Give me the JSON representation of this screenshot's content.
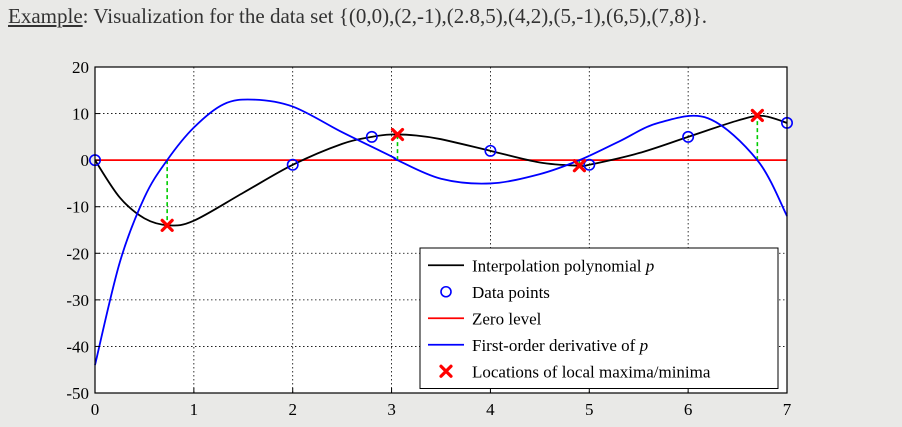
{
  "heading": {
    "lead": "Example",
    "rest": ": Visualization for the data set {(0,0),(2,-1),(2.8,5),(4,2),(5,-1),(6,5),(7,8)}."
  },
  "chart_data": {
    "type": "line",
    "title": "Example: Visualization for the data set {(0,0),(2,-1),(2.8,5),(4,2),(5,-1),(6,5),(7,8)}.",
    "xlabel": "",
    "ylabel": "",
    "xlim": [
      0,
      7
    ],
    "ylim": [
      -50,
      20
    ],
    "x_ticks": [
      "0",
      "1",
      "2",
      "3",
      "4",
      "5",
      "6",
      "7"
    ],
    "y_ticks": [
      "20",
      "10",
      "0",
      "-10",
      "-20",
      "-30",
      "-40",
      "-50"
    ],
    "x_tick_values": [
      0,
      1,
      2,
      3,
      4,
      5,
      6,
      7
    ],
    "y_tick_values": [
      20,
      10,
      0,
      -10,
      -20,
      -30,
      -40,
      -50
    ],
    "grid": true,
    "legend_position": "bottom-right",
    "series": [
      {
        "name": "Interpolation polynomial p",
        "style": "line",
        "color": "#000000",
        "x": [
          0,
          0.25,
          0.5,
          0.75,
          1,
          1.5,
          2,
          2.5,
          2.8,
          3,
          3.25,
          3.5,
          4,
          4.5,
          4.9,
          5,
          5.5,
          6,
          6.5,
          6.75,
          7
        ],
        "y": [
          0,
          -8,
          -12.5,
          -14,
          -13,
          -7,
          -1,
          3.5,
          5,
          5.5,
          5.3,
          4.5,
          2,
          -0.5,
          -1.2,
          -1,
          1.5,
          5,
          8.5,
          9.5,
          8
        ]
      },
      {
        "name": "Data points",
        "style": "markers",
        "marker": "circle",
        "color": "#0000ff",
        "x": [
          0,
          2,
          2.8,
          4,
          5,
          6,
          7
        ],
        "y": [
          0,
          -1,
          5,
          2,
          -1,
          5,
          8
        ]
      },
      {
        "name": "Zero level",
        "style": "line",
        "color": "#ff0000",
        "x": [
          0,
          7
        ],
        "y": [
          0,
          0
        ]
      },
      {
        "name": "First-order derivative of p",
        "style": "line",
        "color": "#0000ff",
        "x": [
          0,
          0.25,
          0.5,
          0.73,
          1,
          1.3,
          1.6,
          2,
          2.5,
          3,
          3.06,
          3.5,
          4,
          4.5,
          4.9,
          5.3,
          5.7,
          6.2,
          6.7,
          7
        ],
        "y": [
          -44,
          -22,
          -8,
          0,
          7,
          12,
          13,
          11.5,
          6,
          0.8,
          0,
          -4,
          -5,
          -3,
          0,
          4,
          8,
          9,
          0,
          -12
        ]
      },
      {
        "name": "Locations of local maxima/minima",
        "style": "markers",
        "marker": "x",
        "color": "#ff0000",
        "x": [
          0.73,
          3.06,
          4.9,
          6.7
        ],
        "y": [
          -14,
          5.5,
          -1.2,
          9.6
        ]
      }
    ],
    "guides": {
      "color": "#00cc00",
      "x": [
        0.73,
        3.06,
        4.9,
        6.7
      ],
      "y_from": [
        0,
        0,
        0,
        0
      ],
      "y_to": [
        -14,
        5.5,
        -1.2,
        9.6
      ]
    },
    "legend": [
      {
        "label_text": "Interpolation polynomial ",
        "label_italic": "p",
        "kind": "line",
        "color": "#000000"
      },
      {
        "label_text": "Data points",
        "label_italic": "",
        "kind": "circle",
        "color": "#0000ff"
      },
      {
        "label_text": "Zero level",
        "label_italic": "",
        "kind": "line",
        "color": "#ff0000"
      },
      {
        "label_text": "First-order derivative of ",
        "label_italic": "p",
        "kind": "line",
        "color": "#0000ff"
      },
      {
        "label_text": "Locations of local maxima/minima",
        "label_italic": "",
        "kind": "x",
        "color": "#ff0000"
      }
    ]
  }
}
